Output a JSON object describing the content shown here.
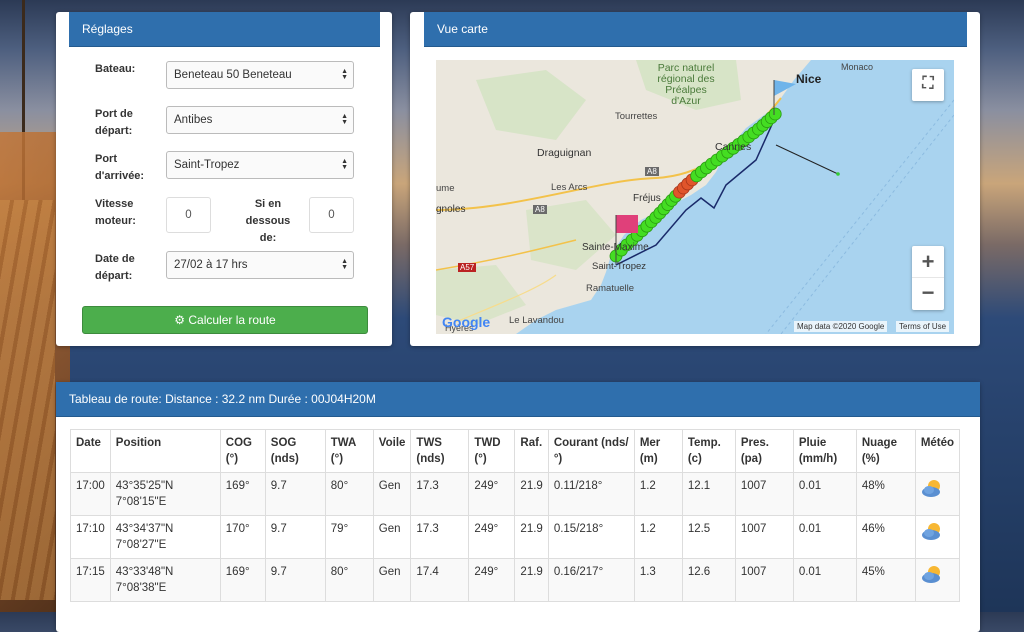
{
  "settings": {
    "title": "Réglages",
    "boat": {
      "label": "Bateau:",
      "value": "Beneteau 50 Beneteau"
    },
    "departure_port": {
      "label1": "Port de",
      "label2": "départ:",
      "value": "Antibes"
    },
    "arrival_port": {
      "label1": "Port",
      "label2": "d'arrivée:",
      "value": "Saint-Tropez"
    },
    "motor_speed": {
      "label1": "Vitesse",
      "label2": "moteur:",
      "value": "0"
    },
    "below": {
      "label1": "Si en",
      "label2": "dessous",
      "label3": "de:",
      "value": "0"
    },
    "departure_date": {
      "label1": "Date de",
      "label2": "départ:",
      "value": "27/02 à 17 hrs"
    },
    "compute_button": "Calculer la route"
  },
  "map": {
    "title": "Vue carte",
    "places": {
      "nice": "Nice",
      "monaco": "Monaco",
      "park1": "Parc naturel",
      "park2": "régional des",
      "park3": "Préalpes",
      "park4": "d'Azur",
      "tourrettes": "Tourrettes",
      "draguignan": "Draguignan",
      "cannes": "Cannes",
      "a8a": "A8",
      "a8b": "A8",
      "a57": "A57",
      "les_arcs": "Les Arcs",
      "frejus": "Fréjus",
      "saint_maxime": "Sainte-Maxime",
      "saint_tropez": "Saint-Tropez",
      "ramatuelle": "Ramatuelle",
      "le_lavandou": "Le Lavandou",
      "gnoles": "gnoles",
      "ume": "ume",
      "hyeres": "Hyères"
    },
    "google_logo": "Google",
    "map_data": "Map data ©2020 Google",
    "terms": "Terms of Use",
    "fullscreen_icon": "fullscreen-icon",
    "zoom_in": "+",
    "zoom_out": "−",
    "colors": {
      "water": "#a9d3ef",
      "land": "#e9e5dc",
      "marker_green": "#44dd22",
      "marker_red": "#e0552b",
      "route": "#1a2a6a"
    }
  },
  "route_table": {
    "title": "Tableau de route: Distance : 32.2 nm Durée : 00J04H20M",
    "headers": [
      {
        "l1": "Date",
        "l2": ""
      },
      {
        "l1": "Position",
        "l2": ""
      },
      {
        "l1": "COG",
        "l2": "(°)"
      },
      {
        "l1": "SOG",
        "l2": "(nds)"
      },
      {
        "l1": "TWA",
        "l2": "(°)"
      },
      {
        "l1": "Voile",
        "l2": ""
      },
      {
        "l1": "TWS",
        "l2": "(nds)"
      },
      {
        "l1": "TWD",
        "l2": "(°)"
      },
      {
        "l1": "Raf.",
        "l2": ""
      },
      {
        "l1": "Courant (nds/",
        "l2": "°)"
      },
      {
        "l1": "Mer",
        "l2": "(m)"
      },
      {
        "l1": "Temp.",
        "l2": "(c)"
      },
      {
        "l1": "Pres.",
        "l2": "(pa)"
      },
      {
        "l1": "Pluie",
        "l2": "(mm/h)"
      },
      {
        "l1": "Nuage",
        "l2": "(%)"
      },
      {
        "l1": "Météo",
        "l2": ""
      }
    ],
    "rows": [
      {
        "date": "17:00",
        "lat": "43°35'25\"N",
        "lon": "7°08'15\"E",
        "cog": "169°",
        "sog": "9.7",
        "twa": "80°",
        "voile": "Gen",
        "tws": "17.3",
        "twd": "249°",
        "raf": "21.9",
        "courant": "0.11/218°",
        "mer": "1.2",
        "temp": "12.1",
        "pres": "1007",
        "pluie": "0.01",
        "nuage": "48%",
        "meteo_icon": "partly-cloudy-icon"
      },
      {
        "date": "17:10",
        "lat": "43°34'37\"N",
        "lon": "7°08'27\"E",
        "cog": "170°",
        "sog": "9.7",
        "twa": "79°",
        "voile": "Gen",
        "tws": "17.3",
        "twd": "249°",
        "raf": "21.9",
        "courant": "0.15/218°",
        "mer": "1.2",
        "temp": "12.5",
        "pres": "1007",
        "pluie": "0.01",
        "nuage": "46%",
        "meteo_icon": "partly-cloudy-icon"
      },
      {
        "date": "17:15",
        "lat": "43°33'48\"N",
        "lon": "7°08'38\"E",
        "cog": "169°",
        "sog": "9.7",
        "twa": "80°",
        "voile": "Gen",
        "tws": "17.4",
        "twd": "249°",
        "raf": "21.9",
        "courant": "0.16/217°",
        "mer": "1.3",
        "temp": "12.6",
        "pres": "1007",
        "pluie": "0.01",
        "nuage": "45%",
        "meteo_icon": "partly-cloudy-icon"
      }
    ]
  }
}
